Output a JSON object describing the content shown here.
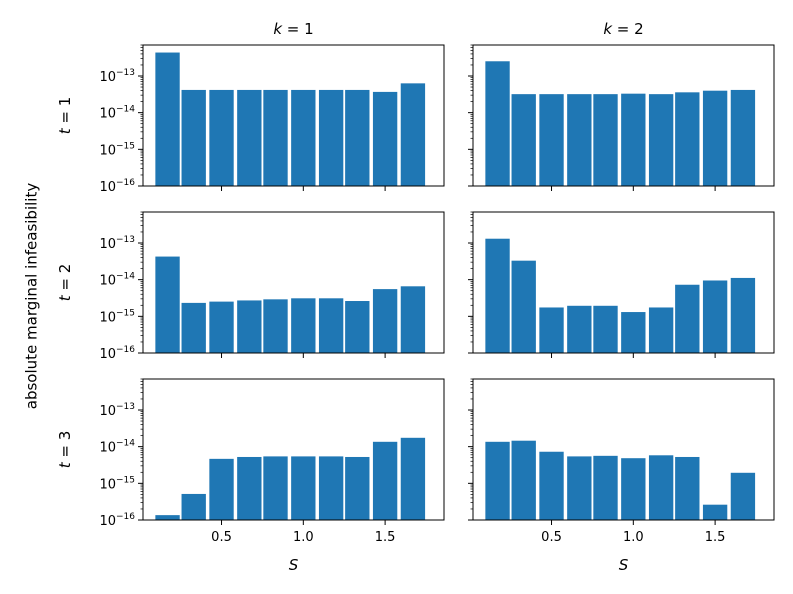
{
  "chart_data": {
    "type": "bar",
    "ylabel": "absolute marginal infeasibility",
    "xlabel": "S",
    "yscale": "log",
    "ylim": [
      1e-16,
      7e-13
    ],
    "xlim": [
      0.02,
      1.86
    ],
    "xticks": [
      0.5,
      1.0,
      1.5
    ],
    "xtick_labels": [
      "0.5",
      "1.0",
      "1.5"
    ],
    "ytick_exponents": [
      -13,
      -14,
      -15,
      -16
    ],
    "ytick_base": "10",
    "bar_width": 0.155,
    "columns": [
      {
        "var": "k",
        "op": " = ",
        "val": "1"
      },
      {
        "var": "k",
        "op": " = ",
        "val": "2"
      }
    ],
    "rows": [
      {
        "var": "t",
        "op": " = ",
        "val": "1"
      },
      {
        "var": "t",
        "op": " = ",
        "val": "2"
      },
      {
        "var": "t",
        "op": " = ",
        "val": "3"
      }
    ],
    "panels": [
      {
        "row": 0,
        "col": 0,
        "x": [
          0.17,
          0.33,
          0.5,
          0.67,
          0.83,
          1.0,
          1.17,
          1.33,
          1.5,
          1.67
        ],
        "values": [
          4.5e-13,
          4.3e-14,
          4.3e-14,
          4.3e-14,
          4.3e-14,
          4.3e-14,
          4.3e-14,
          4.3e-14,
          3.8e-14,
          6.5e-14
        ]
      },
      {
        "row": 0,
        "col": 1,
        "x": [
          0.17,
          0.33,
          0.5,
          0.67,
          0.83,
          1.0,
          1.17,
          1.33,
          1.5,
          1.67
        ],
        "values": [
          2.6e-13,
          3.3e-14,
          3.3e-14,
          3.3e-14,
          3.3e-14,
          3.4e-14,
          3.3e-14,
          3.7e-14,
          4.1e-14,
          4.3e-14
        ]
      },
      {
        "row": 1,
        "col": 0,
        "x": [
          0.17,
          0.33,
          0.5,
          0.67,
          0.83,
          1.0,
          1.17,
          1.33,
          1.5,
          1.67
        ],
        "values": [
          4.4e-14,
          2.4e-15,
          2.6e-15,
          2.8e-15,
          3e-15,
          3.2e-15,
          3.2e-15,
          2.7e-15,
          5.7e-15,
          6.8e-15
        ]
      },
      {
        "row": 1,
        "col": 1,
        "x": [
          0.17,
          0.33,
          0.5,
          0.67,
          0.83,
          1.0,
          1.17,
          1.33,
          1.5,
          1.67
        ],
        "values": [
          1.35e-13,
          3.4e-14,
          1.8e-15,
          2e-15,
          2e-15,
          1.35e-15,
          1.8e-15,
          7.5e-15,
          9.8e-15,
          1.15e-14
        ]
      },
      {
        "row": 2,
        "col": 0,
        "x": [
          0.17,
          0.33,
          0.5,
          0.67,
          0.83,
          1.0,
          1.17,
          1.33,
          1.5,
          1.67
        ],
        "values": [
          1.4e-16,
          5.3e-16,
          4.8e-15,
          5.4e-15,
          5.6e-15,
          5.6e-15,
          5.6e-15,
          5.4e-15,
          1.4e-14,
          1.8e-14
        ]
      },
      {
        "row": 2,
        "col": 1,
        "x": [
          0.17,
          0.33,
          0.5,
          0.67,
          0.83,
          1.0,
          1.17,
          1.33,
          1.5,
          1.67
        ],
        "values": [
          1.4e-14,
          1.5e-14,
          7.5e-15,
          5.6e-15,
          5.8e-15,
          5e-15,
          6e-15,
          5.4e-15,
          2.7e-16,
          2e-15
        ]
      }
    ],
    "bar_color": "#1f77b4",
    "bar_edge_color": "#ffffff",
    "axes_color": "#000000"
  }
}
